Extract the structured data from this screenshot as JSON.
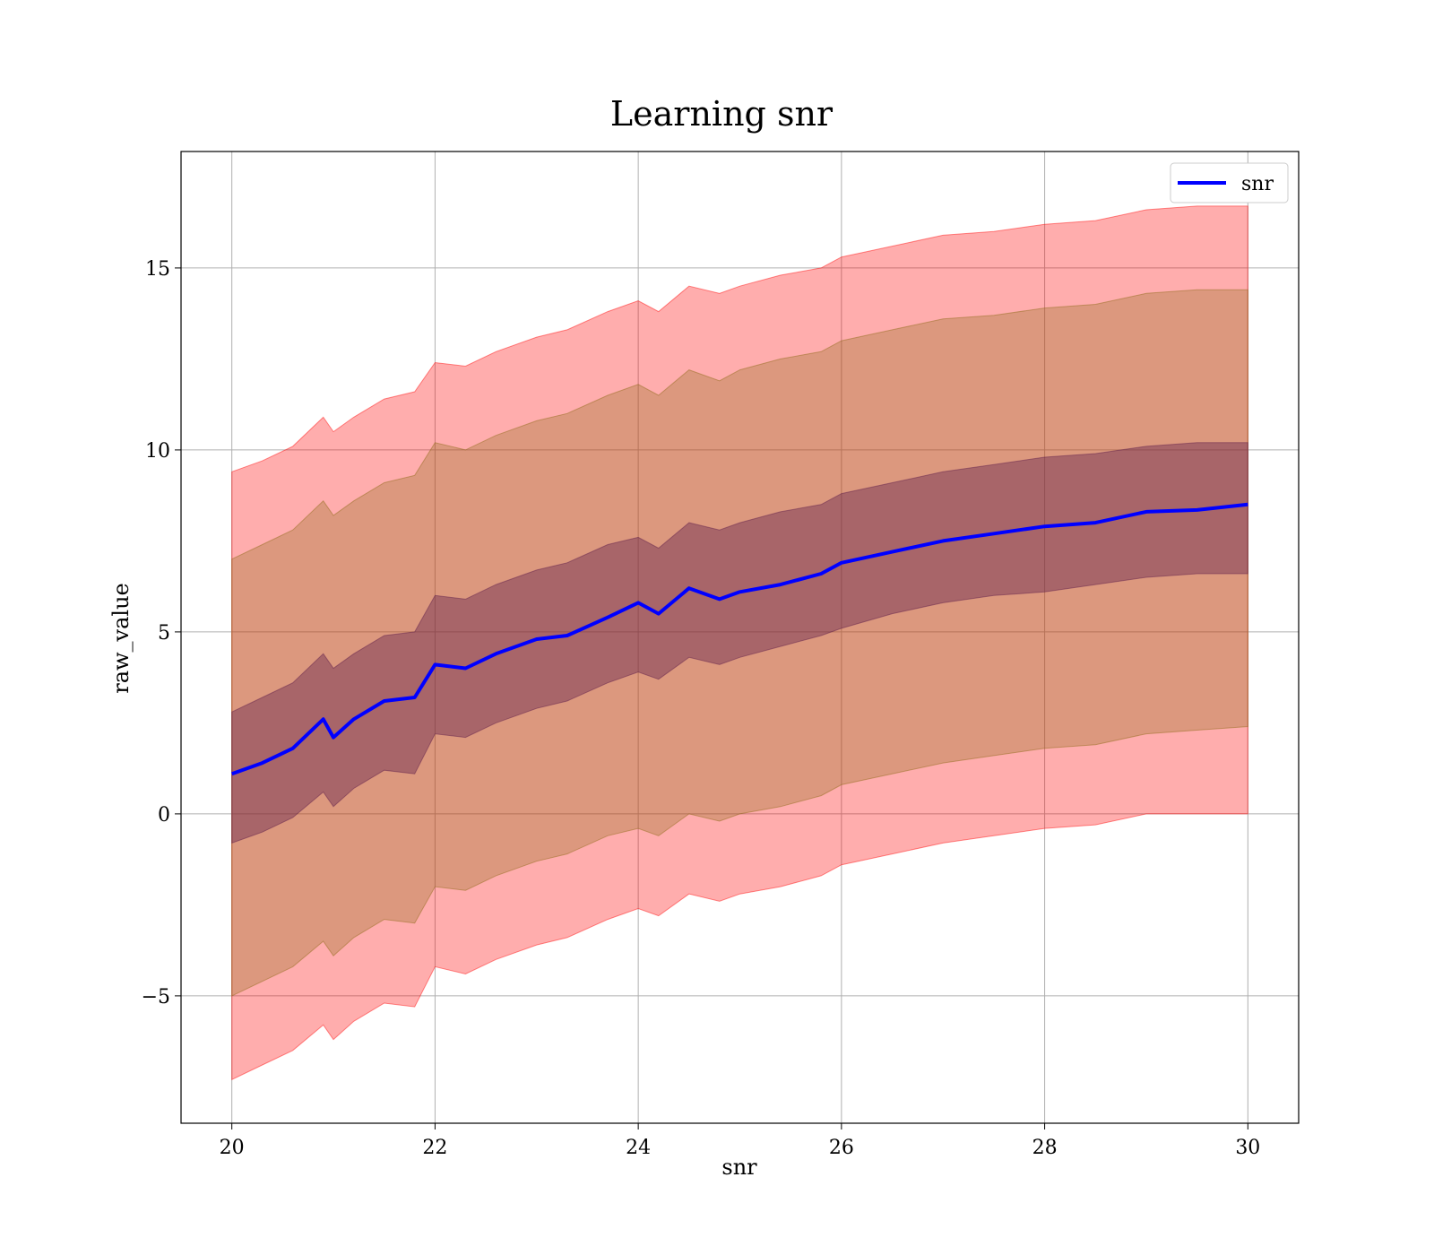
{
  "chart_data": {
    "type": "line",
    "title": "Learning snr",
    "xlabel": "snr",
    "ylabel": "raw_value",
    "xlim": [
      19.5,
      30.5
    ],
    "ylim": [
      -8.5,
      18.2
    ],
    "xticks": [
      20,
      22,
      24,
      26,
      28,
      30
    ],
    "yticks": [
      -5,
      0,
      5,
      10,
      15
    ],
    "ytick_labels": [
      "−5",
      "0",
      "5",
      "10",
      "15"
    ],
    "grid": true,
    "legend": {
      "position": "top-right",
      "entries": [
        "snr"
      ]
    },
    "series": [
      {
        "name": "snr",
        "color": "#0000ff",
        "x": [
          20.0,
          20.3,
          20.6,
          20.9,
          21.0,
          21.2,
          21.5,
          21.8,
          22.0,
          22.3,
          22.6,
          23.0,
          23.3,
          23.7,
          24.0,
          24.2,
          24.5,
          24.8,
          25.0,
          25.4,
          25.8,
          26.0,
          26.5,
          27.0,
          27.5,
          28.0,
          28.5,
          29.0,
          29.5,
          30.0
        ],
        "y": [
          1.1,
          1.4,
          1.8,
          2.6,
          2.1,
          2.6,
          3.1,
          3.2,
          4.1,
          4.0,
          4.4,
          4.8,
          4.9,
          5.4,
          5.8,
          5.5,
          6.2,
          5.9,
          6.1,
          6.3,
          6.6,
          6.9,
          7.2,
          7.5,
          7.7,
          7.9,
          8.0,
          8.3,
          8.35,
          8.5
        ]
      }
    ],
    "bands": [
      {
        "color": "#ff0000",
        "opacity": 0.32,
        "x": [
          20.0,
          20.3,
          20.6,
          20.9,
          21.0,
          21.2,
          21.5,
          21.8,
          22.0,
          22.3,
          22.6,
          23.0,
          23.3,
          23.7,
          24.0,
          24.2,
          24.5,
          24.8,
          25.0,
          25.4,
          25.8,
          26.0,
          26.5,
          27.0,
          27.5,
          28.0,
          28.5,
          29.0,
          29.5,
          30.0
        ],
        "lower": [
          -7.3,
          -6.9,
          -6.5,
          -5.8,
          -6.2,
          -5.7,
          -5.2,
          -5.3,
          -4.2,
          -4.4,
          -4.0,
          -3.6,
          -3.4,
          -2.9,
          -2.6,
          -2.8,
          -2.2,
          -2.4,
          -2.2,
          -2.0,
          -1.7,
          -1.4,
          -1.1,
          -0.8,
          -0.6,
          -0.4,
          -0.3,
          0.0,
          0.0,
          0.0
        ],
        "upper": [
          9.4,
          9.7,
          10.1,
          10.9,
          10.5,
          10.9,
          11.4,
          11.6,
          12.4,
          12.3,
          12.7,
          13.1,
          13.3,
          13.8,
          14.1,
          13.8,
          14.5,
          14.3,
          14.5,
          14.8,
          15.0,
          15.3,
          15.6,
          15.9,
          16.0,
          16.2,
          16.3,
          16.6,
          16.7,
          16.7
        ]
      },
      {
        "color": "#8b6914",
        "opacity": 0.3,
        "x": [
          20.0,
          20.3,
          20.6,
          20.9,
          21.0,
          21.2,
          21.5,
          21.8,
          22.0,
          22.3,
          22.6,
          23.0,
          23.3,
          23.7,
          24.0,
          24.2,
          24.5,
          24.8,
          25.0,
          25.4,
          25.8,
          26.0,
          26.5,
          27.0,
          27.5,
          28.0,
          28.5,
          29.0,
          29.5,
          30.0
        ],
        "lower": [
          -5.0,
          -4.6,
          -4.2,
          -3.5,
          -3.9,
          -3.4,
          -2.9,
          -3.0,
          -2.0,
          -2.1,
          -1.7,
          -1.3,
          -1.1,
          -0.6,
          -0.4,
          -0.6,
          0.0,
          -0.2,
          0.0,
          0.2,
          0.5,
          0.8,
          1.1,
          1.4,
          1.6,
          1.8,
          1.9,
          2.2,
          2.3,
          2.4
        ],
        "upper": [
          7.0,
          7.4,
          7.8,
          8.6,
          8.2,
          8.6,
          9.1,
          9.3,
          10.2,
          10.0,
          10.4,
          10.8,
          11.0,
          11.5,
          11.8,
          11.5,
          12.2,
          11.9,
          12.2,
          12.5,
          12.7,
          13.0,
          13.3,
          13.6,
          13.7,
          13.9,
          14.0,
          14.3,
          14.4,
          14.4
        ]
      },
      {
        "color": "#5a1a4a",
        "opacity": 0.4,
        "x": [
          20.0,
          20.3,
          20.6,
          20.9,
          21.0,
          21.2,
          21.5,
          21.8,
          22.0,
          22.3,
          22.6,
          23.0,
          23.3,
          23.7,
          24.0,
          24.2,
          24.5,
          24.8,
          25.0,
          25.4,
          25.8,
          26.0,
          26.5,
          27.0,
          27.5,
          28.0,
          28.5,
          29.0,
          29.5,
          30.0
        ],
        "lower": [
          -0.8,
          -0.5,
          -0.1,
          0.6,
          0.2,
          0.7,
          1.2,
          1.1,
          2.2,
          2.1,
          2.5,
          2.9,
          3.1,
          3.6,
          3.9,
          3.7,
          4.3,
          4.1,
          4.3,
          4.6,
          4.9,
          5.1,
          5.5,
          5.8,
          6.0,
          6.1,
          6.3,
          6.5,
          6.6,
          6.6
        ],
        "upper": [
          2.8,
          3.2,
          3.6,
          4.4,
          4.0,
          4.4,
          4.9,
          5.0,
          6.0,
          5.9,
          6.3,
          6.7,
          6.9,
          7.4,
          7.6,
          7.3,
          8.0,
          7.8,
          8.0,
          8.3,
          8.5,
          8.8,
          9.1,
          9.4,
          9.6,
          9.8,
          9.9,
          10.1,
          10.2,
          10.2
        ]
      }
    ]
  }
}
